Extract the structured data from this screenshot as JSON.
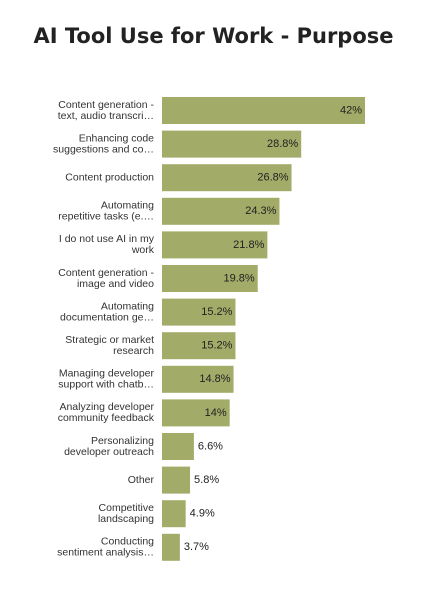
{
  "chart_data": {
    "type": "bar",
    "orientation": "horizontal",
    "title": "AI Tool Use for Work - Purpose",
    "categories": [
      [
        "Content generation -",
        "text, audio transcri…"
      ],
      [
        "Enhancing code",
        "suggestions and co…"
      ],
      [
        "Content production"
      ],
      [
        "Automating",
        "repetitive tasks (e.…"
      ],
      [
        "I do not use AI in my",
        "work"
      ],
      [
        "Content generation -",
        "image and video"
      ],
      [
        "Automating",
        "documentation ge…"
      ],
      [
        "Strategic or market",
        "research"
      ],
      [
        "Managing developer",
        "support with chatb…"
      ],
      [
        "Analyzing developer",
        "community feedback"
      ],
      [
        "Personalizing",
        "developer outreach"
      ],
      [
        "Other"
      ],
      [
        "Competitive",
        "landscaping"
      ],
      [
        "Conducting",
        "sentiment analysis…"
      ]
    ],
    "values": [
      42,
      28.8,
      26.8,
      24.3,
      21.8,
      19.8,
      15.2,
      15.2,
      14.8,
      14,
      6.6,
      5.8,
      4.9,
      3.7
    ],
    "value_labels": [
      "42%",
      "28.8%",
      "26.8%",
      "24.3%",
      "21.8%",
      "19.8%",
      "15.2%",
      "15.2%",
      "14.8%",
      "14%",
      "6.6%",
      "5.8%",
      "4.9%",
      "3.7%"
    ],
    "xlim": [
      0,
      42
    ],
    "bar_color": "#a3ab68",
    "grid": false,
    "legend": "none"
  }
}
